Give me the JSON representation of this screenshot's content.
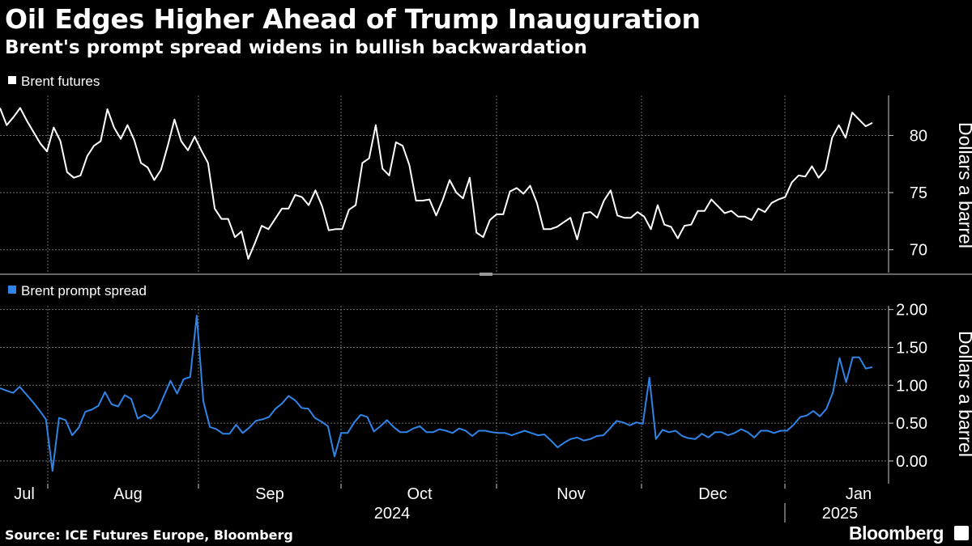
{
  "header": {
    "title": "Oil Edges Higher Ahead of Trump Inauguration",
    "subtitle": "Brent's prompt spread widens in bullish backwardation"
  },
  "footer": {
    "source": "Source: ICE Futures Europe, Bloomberg",
    "brand": "Bloomberg"
  },
  "chart_data": [
    {
      "type": "line",
      "legend": "Brent futures",
      "color": "#ffffff",
      "ylabel": "Dollars a barrel",
      "ylim": [
        68,
        83.5
      ],
      "yticks": [
        70,
        75,
        80
      ],
      "ytick_labels": [
        "70",
        "75",
        "80"
      ],
      "grid": true,
      "values": [
        82.4,
        80.9,
        81.6,
        82.4,
        81.3,
        80.3,
        79.3,
        78.6,
        80.7,
        79.5,
        76.8,
        76.3,
        76.5,
        78.2,
        79.1,
        79.5,
        82.3,
        80.7,
        79.7,
        80.9,
        79.6,
        77.6,
        77.2,
        76.1,
        77.0,
        79.1,
        81.4,
        79.5,
        78.7,
        79.9,
        78.7,
        77.6,
        73.6,
        72.7,
        72.7,
        71.1,
        71.6,
        69.2,
        70.6,
        72.1,
        71.8,
        72.7,
        73.6,
        73.6,
        74.8,
        74.6,
        73.9,
        75.2,
        73.8,
        71.7,
        71.8,
        71.8,
        73.5,
        73.9,
        77.6,
        78.0,
        80.9,
        77.1,
        76.5,
        79.4,
        79.1,
        77.4,
        74.3,
        74.3,
        74.4,
        73.0,
        74.4,
        76.1,
        75.0,
        74.5,
        76.3,
        71.5,
        71.1,
        72.6,
        73.1,
        73.1,
        75.1,
        75.4,
        74.9,
        75.6,
        74.1,
        71.8,
        71.8,
        72.0,
        72.4,
        72.8,
        70.9,
        73.2,
        73.3,
        72.8,
        74.3,
        75.2,
        73.0,
        72.8,
        72.8,
        73.3,
        72.9,
        71.8,
        73.9,
        72.2,
        72.0,
        71.0,
        72.1,
        72.2,
        73.4,
        73.4,
        74.4,
        73.8,
        73.2,
        73.4,
        72.9,
        72.9,
        72.6,
        73.6,
        73.3,
        74.1,
        74.4,
        74.6,
        75.9,
        76.5,
        76.4,
        77.3,
        76.3,
        77.0,
        79.8,
        80.9,
        79.8,
        82.0,
        81.4,
        80.8,
        81.1
      ]
    },
    {
      "type": "line",
      "legend": "Brent prompt spread",
      "color": "#2f84e6",
      "ylabel": "Dollars a barrel",
      "ylim": [
        -0.3,
        2.05
      ],
      "yticks": [
        0.0,
        0.5,
        1.0,
        1.5,
        2.0
      ],
      "ytick_labels": [
        "0.00",
        "0.50",
        "1.00",
        "1.50",
        "2.00"
      ],
      "grid": true,
      "values": [
        0.96,
        0.93,
        0.9,
        0.98,
        0.88,
        0.78,
        0.67,
        0.55,
        -0.13,
        0.57,
        0.54,
        0.34,
        0.44,
        0.65,
        0.68,
        0.73,
        0.91,
        0.75,
        0.72,
        0.87,
        0.82,
        0.56,
        0.61,
        0.56,
        0.66,
        0.86,
        1.06,
        0.89,
        1.08,
        1.11,
        1.92,
        0.79,
        0.45,
        0.42,
        0.36,
        0.36,
        0.48,
        0.37,
        0.44,
        0.53,
        0.55,
        0.58,
        0.69,
        0.76,
        0.86,
        0.8,
        0.7,
        0.69,
        0.57,
        0.52,
        0.46,
        0.06,
        0.37,
        0.37,
        0.51,
        0.61,
        0.58,
        0.39,
        0.46,
        0.54,
        0.45,
        0.38,
        0.38,
        0.43,
        0.46,
        0.38,
        0.38,
        0.42,
        0.4,
        0.37,
        0.43,
        0.4,
        0.33,
        0.4,
        0.4,
        0.38,
        0.37,
        0.37,
        0.34,
        0.37,
        0.4,
        0.37,
        0.34,
        0.35,
        0.27,
        0.18,
        0.24,
        0.29,
        0.31,
        0.27,
        0.29,
        0.33,
        0.34,
        0.43,
        0.53,
        0.51,
        0.47,
        0.51,
        0.49,
        1.1,
        0.29,
        0.41,
        0.38,
        0.4,
        0.33,
        0.3,
        0.29,
        0.36,
        0.31,
        0.38,
        0.38,
        0.34,
        0.37,
        0.42,
        0.38,
        0.31,
        0.4,
        0.4,
        0.37,
        0.4,
        0.4,
        0.48,
        0.58,
        0.6,
        0.66,
        0.59,
        0.69,
        0.91,
        1.36,
        1.04,
        1.37,
        1.37,
        1.22,
        1.24
      ]
    }
  ],
  "x_axis": {
    "months": [
      "Jul",
      "Aug",
      "Sep",
      "Oct",
      "Nov",
      "Dec",
      "Jan"
    ],
    "years": [
      "2024",
      "2025"
    ]
  }
}
